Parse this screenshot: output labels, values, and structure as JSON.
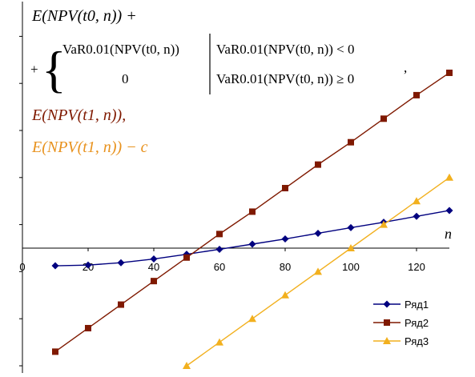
{
  "chart_data": {
    "type": "line",
    "xlabel": "n",
    "x_ticks": [
      "0",
      "20",
      "40",
      "60",
      "80",
      "100",
      "120"
    ],
    "xlim": [
      0,
      130
    ],
    "grid": false,
    "legend_placement": "bottom-right",
    "x": [
      10,
      20,
      30,
      40,
      50,
      60,
      70,
      80,
      90,
      100,
      110,
      120,
      130
    ],
    "series": [
      {
        "name": "Ряд1",
        "color": "#00007f",
        "marker": "diamond",
        "values": [
          -0.75,
          -0.72,
          -0.62,
          -0.46,
          -0.26,
          -0.05,
          0.17,
          0.39,
          0.63,
          0.87,
          1.1,
          1.35,
          1.6
        ]
      },
      {
        "name": "Ряд2",
        "color": "#7f1900",
        "marker": "square",
        "values": [
          -4.4,
          -3.4,
          -2.4,
          -1.4,
          -0.4,
          0.6,
          1.55,
          2.55,
          3.55,
          4.5,
          5.5,
          6.5,
          7.45
        ]
      },
      {
        "name": "Ряд3",
        "color": "#f2b01e",
        "marker": "triangle",
        "values": [
          null,
          null,
          null,
          null,
          -5.0,
          -4.0,
          -3.0,
          -2.0,
          -1.0,
          0.0,
          1.0,
          2.0,
          3.0
        ]
      }
    ],
    "annotations": {
      "line1": "E(NPV(t0, n)) +",
      "line2_top": "VaR0.01(NPV(t0, n))",
      "line2_cond1": "VaR0.01(NPV(t0, n)) < 0",
      "line2_bottom": "0",
      "line2_cond2": "VaR0.01(NPV(t0, n)) ≥ 0",
      "line3": "E(NPV(t1, n)),",
      "line4": "E(NPV(t1, n)) − c"
    }
  }
}
